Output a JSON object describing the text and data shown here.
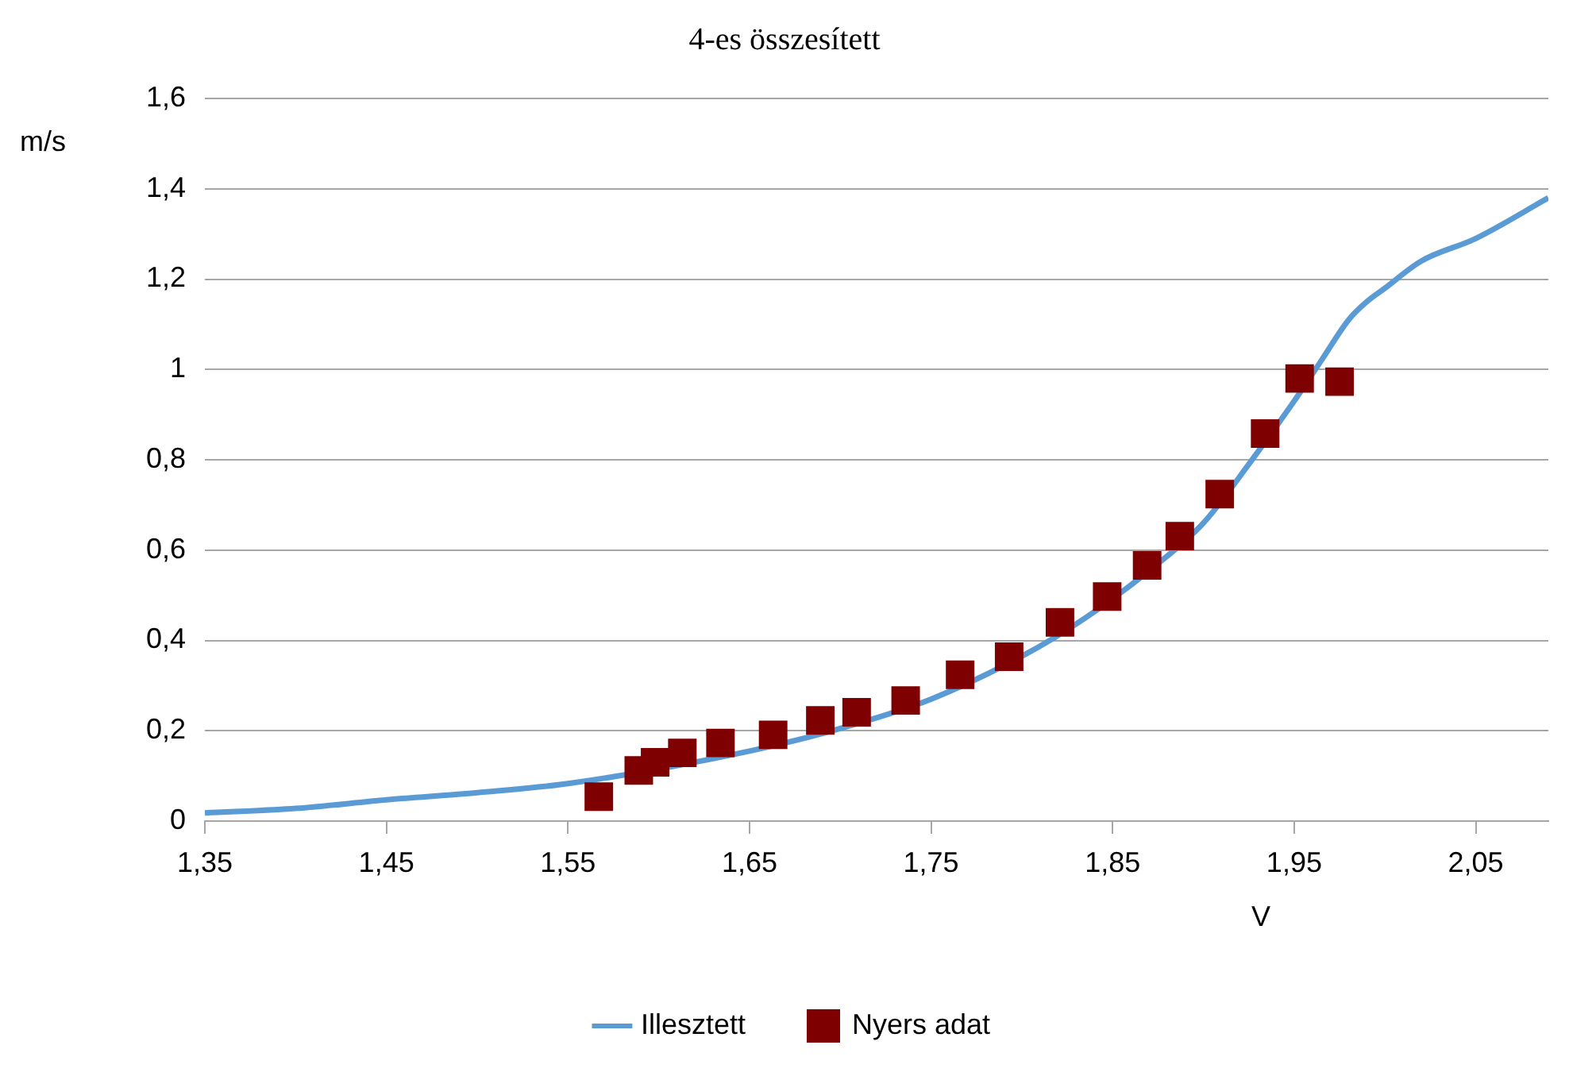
{
  "chart_data": {
    "type": "scatter",
    "title": "4-es összesített",
    "xlabel": "V",
    "ylabel": "m/s",
    "xlim": [
      1.35,
      2.09
    ],
    "xticks": [
      {
        "value": 1.35,
        "label": "1,35"
      },
      {
        "value": 1.45,
        "label": "1,45"
      },
      {
        "value": 1.55,
        "label": "1,55"
      },
      {
        "value": 1.65,
        "label": "1,65"
      },
      {
        "value": 1.75,
        "label": "1,75"
      },
      {
        "value": 1.85,
        "label": "1,85"
      },
      {
        "value": 1.95,
        "label": "1,95"
      },
      {
        "value": 2.05,
        "label": "2,05"
      }
    ],
    "ylim": [
      0,
      1.6
    ],
    "yticks": [
      0,
      {
        "value": 0.2,
        "label": "0,2"
      },
      {
        "value": 0.4,
        "label": "0,4"
      },
      {
        "value": 0.6,
        "label": "0,6"
      },
      {
        "value": 0.8,
        "label": "0,8"
      },
      1,
      {
        "value": 1.2,
        "label": "1,2"
      },
      {
        "value": 1.4,
        "label": "1,4"
      },
      {
        "value": 1.6,
        "label": "1,6"
      }
    ],
    "grid": "y",
    "legend": "bottom",
    "series": [
      {
        "name": "Illesztett",
        "type": "line",
        "color": "#5b9bd5",
        "marker": "none",
        "line_style": "solid",
        "x": [
          1.35,
          1.4,
          1.45,
          1.5,
          1.55,
          1.65,
          1.7,
          1.75,
          1.8,
          1.835,
          1.875,
          1.9,
          1.925,
          1.95,
          1.965,
          1.98,
          1.99,
          2.0,
          2.02,
          2.05,
          2.09
        ],
        "values": [
          0.018,
          0.028,
          0.047,
          0.063,
          0.083,
          0.155,
          0.205,
          0.27,
          0.365,
          0.45,
          0.57,
          0.66,
          0.79,
          0.93,
          1.02,
          1.11,
          1.15,
          1.18,
          1.24,
          1.29,
          1.38
        ]
      },
      {
        "name": "Nyers adat",
        "color": "#7f0000",
        "marker": "square",
        "x": [
          1.567,
          1.589,
          1.598,
          1.613,
          1.634,
          1.663,
          1.689,
          1.709,
          1.736,
          1.766,
          1.793,
          1.821,
          1.847,
          1.869,
          1.887,
          1.909,
          1.934,
          1.953,
          1.975
        ],
        "values": [
          0.054,
          0.112,
          0.13,
          0.151,
          0.173,
          0.191,
          0.223,
          0.241,
          0.267,
          0.324,
          0.364,
          0.44,
          0.497,
          0.566,
          0.631,
          0.724,
          0.858,
          0.98,
          0.973
        ]
      }
    ]
  }
}
